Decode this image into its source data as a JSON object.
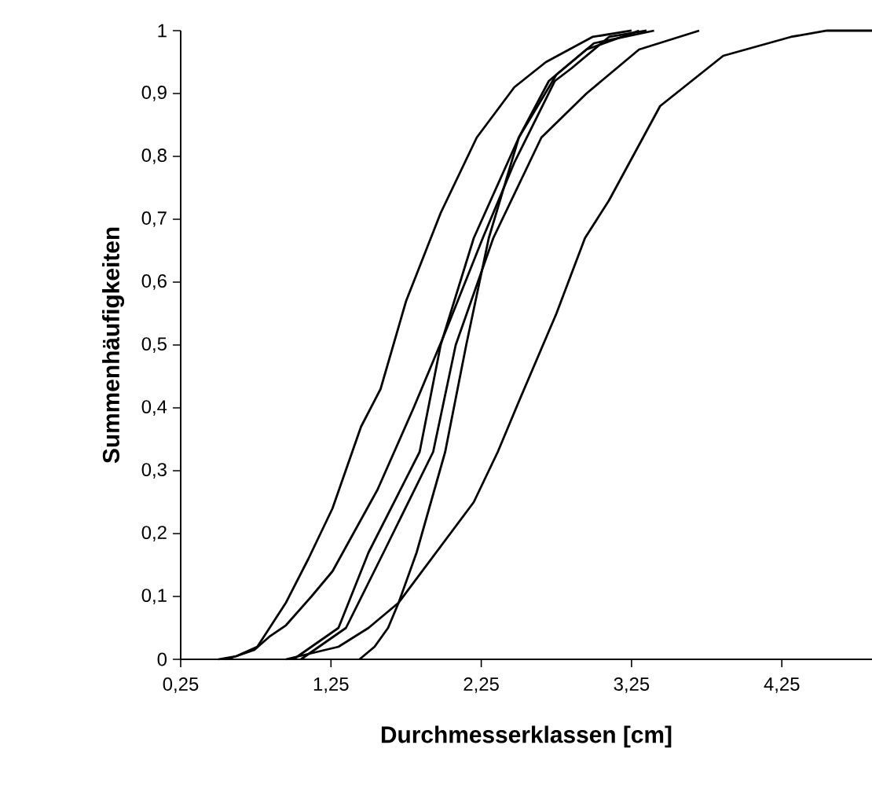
{
  "chart_data": {
    "type": "line",
    "xlabel": "Durchmesserklassen [cm]",
    "ylabel": "Summenhäufigkeiten",
    "xlim": [
      0.25,
      4.85
    ],
    "ylim": [
      0,
      1
    ],
    "xticks": [
      {
        "value": 0.25,
        "label": "0,25"
      },
      {
        "value": 1.25,
        "label": "1,25"
      },
      {
        "value": 2.25,
        "label": "2,25"
      },
      {
        "value": 3.25,
        "label": "3,25"
      },
      {
        "value": 4.25,
        "label": "4,25"
      }
    ],
    "yticks": [
      0,
      {
        "value": 0.1,
        "label": "0,1"
      },
      {
        "value": 0.2,
        "label": "0,2"
      },
      {
        "value": 0.3,
        "label": "0,3"
      },
      {
        "value": 0.4,
        "label": "0,4"
      },
      {
        "value": 0.5,
        "label": "0,5"
      },
      {
        "value": 0.6,
        "label": "0,6"
      },
      {
        "value": 0.7,
        "label": "0,7"
      },
      {
        "value": 0.8,
        "label": "0,8"
      },
      {
        "value": 0.9,
        "label": "0,9"
      },
      1
    ],
    "grid": false,
    "marker": "none",
    "line_style": "solid",
    "series": [
      {
        "color": "#000000",
        "x": [
          0.5,
          0.62,
          0.76,
          0.95,
          1.1,
          1.26,
          1.45,
          1.58,
          1.75,
          1.98,
          2.22,
          2.47,
          2.68,
          2.99,
          3.25
        ],
        "values": [
          0,
          0.005,
          0.02,
          0.09,
          0.16,
          0.24,
          0.37,
          0.43,
          0.57,
          0.71,
          0.83,
          0.91,
          0.95,
          0.99,
          1
        ]
      },
      {
        "color": "#000000",
        "x": [
          0.55,
          0.62,
          0.74,
          0.84,
          0.95,
          1.12,
          1.26,
          1.56,
          1.8,
          2.01,
          2.26,
          2.47,
          2.74,
          2.85,
          3.1,
          3.35
        ],
        "values": [
          0,
          0.005,
          0.015,
          0.036,
          0.054,
          0.1,
          0.14,
          0.27,
          0.4,
          0.52,
          0.67,
          0.79,
          0.92,
          0.94,
          0.99,
          1
        ]
      },
      {
        "color": "#000000",
        "x": [
          1.0,
          1.3,
          1.5,
          1.84,
          1.98,
          2.2,
          2.5,
          2.75,
          3.0,
          3.4
        ],
        "values": [
          0,
          0.05,
          0.17,
          0.33,
          0.5,
          0.67,
          0.83,
          0.93,
          0.98,
          1
        ]
      },
      {
        "color": "#000000",
        "x": [
          1.05,
          1.35,
          1.6,
          1.93,
          2.08,
          2.33,
          2.65,
          2.95,
          3.3,
          3.7
        ],
        "values": [
          0,
          0.05,
          0.17,
          0.33,
          0.5,
          0.67,
          0.83,
          0.9,
          0.97,
          1
        ]
      },
      {
        "color": "#000000",
        "x": [
          1.44,
          1.54,
          1.63,
          1.7,
          1.82,
          2.01,
          2.15,
          2.3,
          2.5,
          2.7,
          2.95,
          3.3
        ],
        "values": [
          0,
          0.02,
          0.05,
          0.09,
          0.17,
          0.33,
          0.5,
          0.67,
          0.83,
          0.92,
          0.97,
          1
        ]
      },
      {
        "color": "#000000",
        "x": [
          0.95,
          1.3,
          1.5,
          1.7,
          1.95,
          2.2,
          2.36,
          2.5,
          2.75,
          2.94,
          3.1,
          3.44,
          3.86,
          4.31,
          4.55,
          4.85
        ],
        "values": [
          0,
          0.02,
          0.05,
          0.09,
          0.17,
          0.25,
          0.33,
          0.41,
          0.55,
          0.67,
          0.73,
          0.88,
          0.96,
          0.99,
          1,
          1
        ]
      }
    ]
  }
}
